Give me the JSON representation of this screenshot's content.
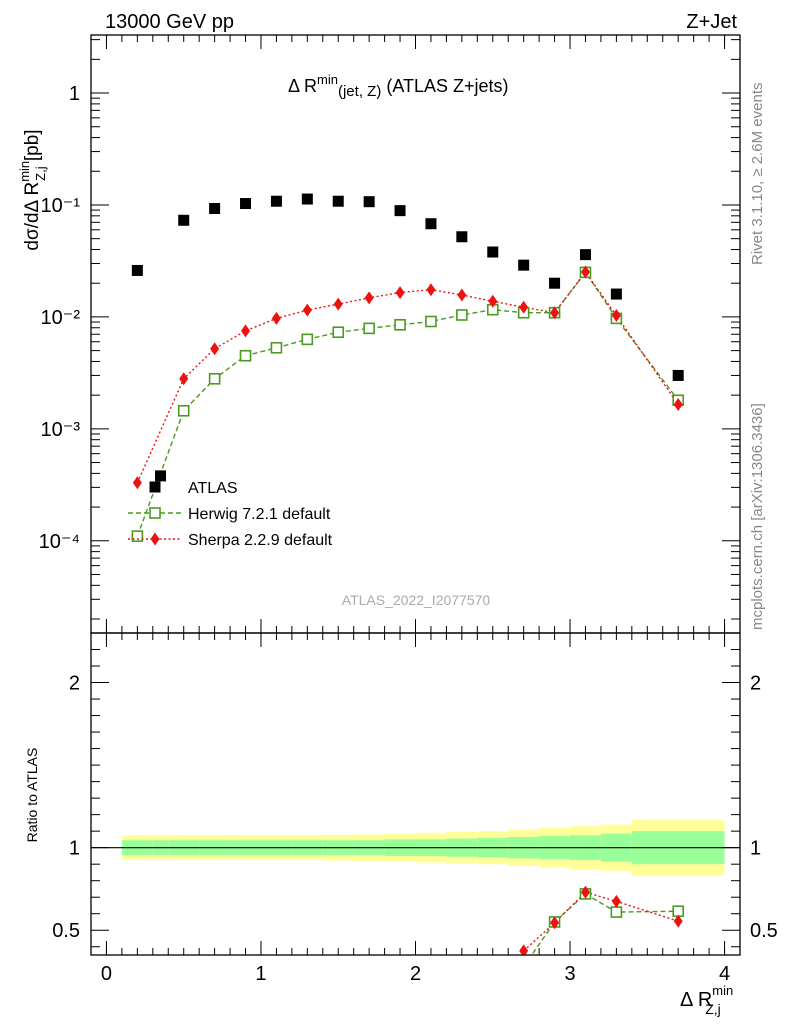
{
  "header": {
    "left": "13000 GeV pp",
    "right": "Z+Jet"
  },
  "side": {
    "rivet": "Rivet 3.1.10, ≥ 2.6M events",
    "mcplots": "mcplots.cern.ch [arXiv:1306.3436]"
  },
  "main": {
    "title_prefix": "Δ R",
    "title_sup": "min",
    "title_sub": "(jet, Z)",
    "title_suffix": " (ATLAS Z+jets)",
    "ylabel_prefix": "dσ/dΔ R",
    "ylabel_sup": "min",
    "ylabel_sub": "Z,j",
    "ylabel_suffix": " [pb]",
    "watermark": "ATLAS_2022_I2077570"
  },
  "ratio": {
    "ylabel": "Ratio to ATLAS"
  },
  "xaxis": {
    "label_prefix": "Δ R",
    "label_sup": "min",
    "label_sub": "Z,j"
  },
  "colors": {
    "atlas": "#000000",
    "herwig": "#4a9a1f",
    "sherpa": "#ee1111",
    "band_inner": "#99ff99",
    "band_outer": "#ffff99"
  },
  "chart_data": {
    "type": "scatter",
    "yscale": "log",
    "xlim": [
      -0.1,
      4.1
    ],
    "ylim": [
      1.5e-05,
      3.3
    ],
    "ratio_ylim": [
      0.35,
      2.3
    ],
    "main_yticks": [
      "10⁻⁴",
      "10⁻³",
      "10⁻²",
      "10⁻¹",
      "1"
    ],
    "main_ytick_values": [
      0.0001,
      0.001,
      0.01,
      0.1,
      1
    ],
    "xticks": [
      "0",
      "1",
      "2",
      "3",
      "4"
    ],
    "xtick_values": [
      0,
      1,
      2,
      3,
      4
    ],
    "ratio_yticks": [
      "0.5",
      "1",
      "2"
    ],
    "ratio_ytick_values": [
      0.5,
      1,
      2
    ],
    "bin_edges": [
      0.1,
      0.3,
      0.4,
      0.6,
      0.8,
      1.0,
      1.2,
      1.4,
      1.6,
      1.8,
      2.0,
      2.2,
      2.4,
      2.6,
      2.8,
      3.0,
      3.2,
      3.4,
      4.0
    ],
    "band_inner": [
      0.045,
      0.045,
      0.045,
      0.045,
      0.045,
      0.045,
      0.045,
      0.045,
      0.045,
      0.05,
      0.05,
      0.055,
      0.06,
      0.065,
      0.07,
      0.075,
      0.085,
      0.1
    ],
    "band_outer": [
      0.075,
      0.075,
      0.075,
      0.075,
      0.075,
      0.075,
      0.075,
      0.078,
      0.08,
      0.085,
      0.09,
      0.095,
      0.1,
      0.11,
      0.12,
      0.13,
      0.14,
      0.17
    ],
    "series": [
      {
        "name": "ATLAS",
        "marker": "square-filled",
        "x": [
          0.2,
          0.35,
          0.5,
          0.7,
          0.9,
          1.1,
          1.3,
          1.5,
          1.7,
          1.9,
          2.1,
          2.3,
          2.5,
          2.7,
          2.9,
          3.1,
          3.3,
          3.7
        ],
        "y": [
          0.026,
          0.00038,
          0.073,
          0.093,
          0.103,
          0.108,
          0.113,
          0.108,
          0.107,
          0.089,
          0.068,
          0.052,
          0.038,
          0.029,
          0.02,
          0.036,
          0.016,
          0.003
        ]
      },
      {
        "name": "Herwig 7.2.1 default",
        "marker": "square-open",
        "line": "dashed",
        "x": [
          0.2,
          0.5,
          0.7,
          0.9,
          1.1,
          1.3,
          1.5,
          1.7,
          1.9,
          2.1,
          2.3,
          2.5,
          2.7,
          2.9,
          3.1,
          3.3,
          3.7
        ],
        "y": [
          0.00011,
          0.00145,
          0.0028,
          0.0045,
          0.0053,
          0.0063,
          0.0073,
          0.0079,
          0.0085,
          0.0091,
          0.0104,
          0.0116,
          0.0109,
          0.0109,
          0.025,
          0.0097,
          0.0018
        ],
        "ratio_x": [
          2.7,
          2.9,
          3.1,
          3.3,
          3.7
        ],
        "ratio_y": [
          0.28,
          0.55,
          0.72,
          0.61,
          0.615
        ]
      },
      {
        "name": "Sherpa 2.2.9 default",
        "marker": "diamond",
        "line": "dotted",
        "x": [
          0.2,
          0.5,
          0.7,
          0.9,
          1.1,
          1.3,
          1.5,
          1.7,
          1.9,
          2.1,
          2.3,
          2.5,
          2.7,
          2.9,
          3.1,
          3.3,
          3.7
        ],
        "y": [
          0.00033,
          0.0028,
          0.0052,
          0.0075,
          0.0097,
          0.0115,
          0.013,
          0.0148,
          0.0165,
          0.0175,
          0.0157,
          0.0138,
          0.0122,
          0.0109,
          0.0252,
          0.0103,
          0.00165
        ],
        "ratio_x": [
          2.7,
          2.9,
          3.1,
          3.3,
          3.7
        ],
        "ratio_y": [
          0.375,
          0.545,
          0.73,
          0.675,
          0.555
        ]
      }
    ]
  }
}
